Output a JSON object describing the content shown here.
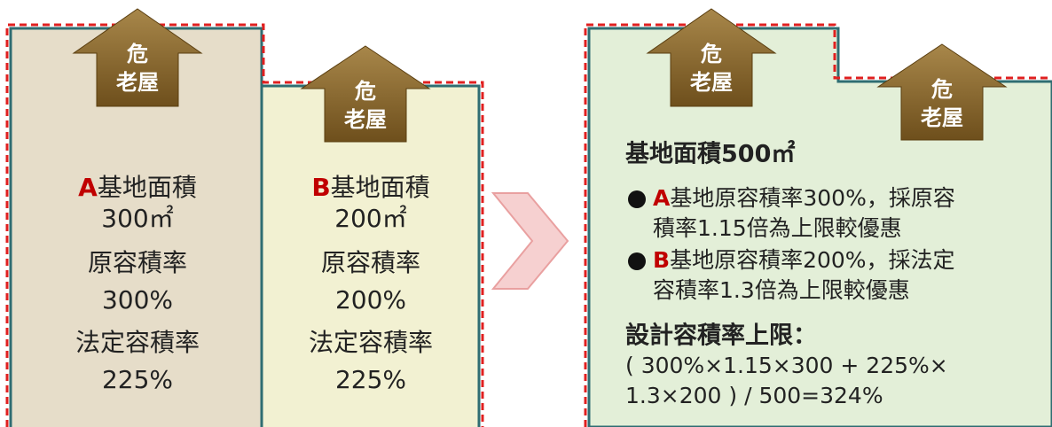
{
  "houses": [
    {
      "line1": "危",
      "line2": "老屋"
    },
    {
      "line1": "危",
      "line2": "老屋"
    },
    {
      "line1": "危",
      "line2": "老屋"
    },
    {
      "line1": "危",
      "line2": "老屋"
    }
  ],
  "lots": [
    {
      "label": "A",
      "lines": [
        "基地面積",
        "300㎡",
        "原容積率",
        "300%",
        "法定容積率",
        "225%"
      ]
    },
    {
      "label": "B",
      "lines": [
        "基地面積",
        "200㎡",
        "原容積率",
        "200%",
        "法定容積率",
        "225%"
      ]
    }
  ],
  "result": {
    "title": "基地面積500㎡",
    "items": [
      {
        "label": "A",
        "lines": [
          "基地原容積率300%，採原容",
          "積率1.15倍為上限較優惠"
        ]
      },
      {
        "label": "B",
        "lines": [
          "基地原容積率200%，採法定",
          "容積率1.3倍為上限較優惠"
        ]
      }
    ],
    "formula_title": "設計容積率上限：",
    "formula_lines": [
      "( 300%×1.15×300 + 225%×",
      "1.3×200 ) / 500=324%"
    ]
  }
}
